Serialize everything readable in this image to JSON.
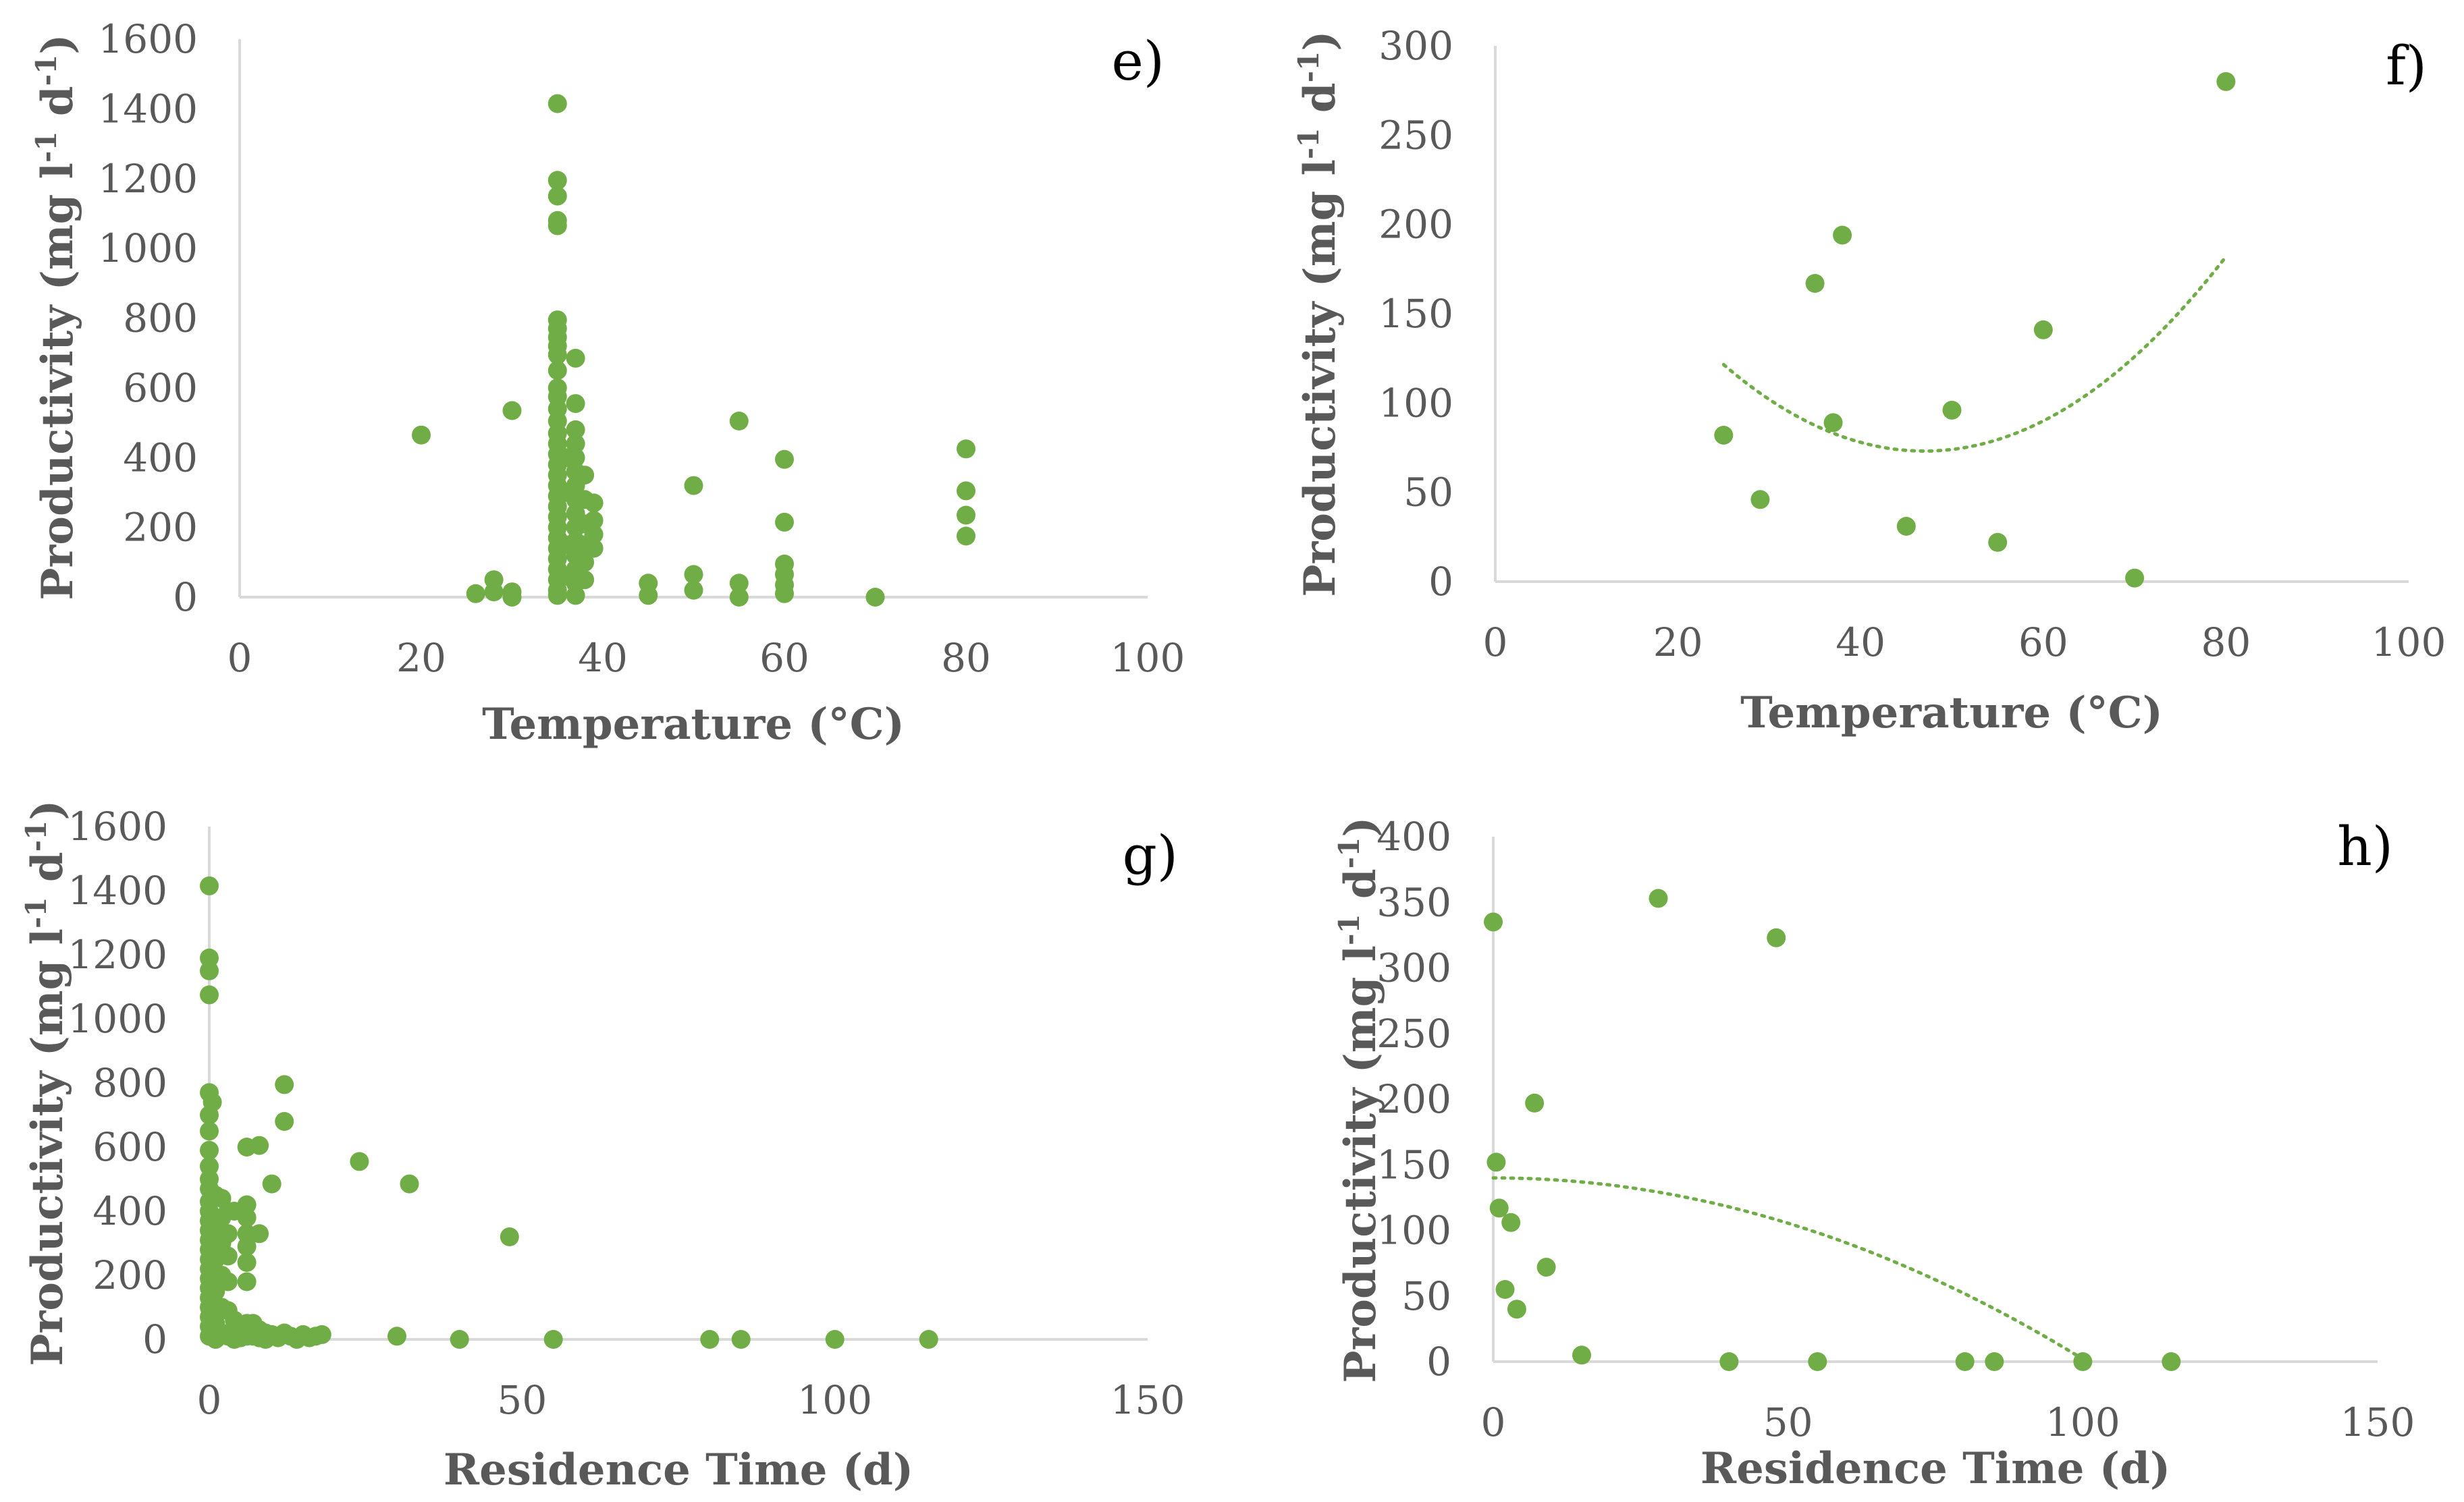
{
  "colors": {
    "marker": "#70AD47",
    "axis": "#D9D9D9",
    "text": "#595959",
    "trend": "#70AD47"
  },
  "chart_data": [
    {
      "id": "e",
      "type": "scatter",
      "panel_label": "e)",
      "xlabel": "Temperature (°C)",
      "ylabel_main": "Productivity (mg l",
      "ylabel_sup1": "-1",
      "ylabel_mid": " d",
      "ylabel_sup2": "-1",
      "ylabel_end": ")",
      "xlim": [
        0,
        100
      ],
      "ylim": [
        0,
        1600
      ],
      "xticks": [
        0,
        20,
        40,
        60,
        80,
        100
      ],
      "yticks": [
        0,
        200,
        400,
        600,
        800,
        1000,
        1200,
        1400,
        1600
      ],
      "points": [
        [
          20,
          465
        ],
        [
          26,
          10
        ],
        [
          28,
          50
        ],
        [
          28,
          15
        ],
        [
          30,
          535
        ],
        [
          30,
          15
        ],
        [
          30,
          0
        ],
        [
          35,
          1415
        ],
        [
          35,
          1195
        ],
        [
          35,
          1150
        ],
        [
          35,
          1080
        ],
        [
          35,
          1065
        ],
        [
          35,
          795
        ],
        [
          35,
          770
        ],
        [
          35,
          745
        ],
        [
          35,
          720
        ],
        [
          35,
          695
        ],
        [
          35,
          650
        ],
        [
          35,
          600
        ],
        [
          35,
          575
        ],
        [
          35,
          540
        ],
        [
          35,
          505
        ],
        [
          35,
          470
        ],
        [
          35,
          440
        ],
        [
          35,
          410
        ],
        [
          35,
          380
        ],
        [
          35,
          350
        ],
        [
          35,
          320
        ],
        [
          35,
          290
        ],
        [
          35,
          260
        ],
        [
          35,
          230
        ],
        [
          35,
          200
        ],
        [
          35,
          170
        ],
        [
          35,
          140
        ],
        [
          35,
          110
        ],
        [
          35,
          80
        ],
        [
          35,
          50
        ],
        [
          35,
          20
        ],
        [
          35,
          5
        ],
        [
          36,
          400
        ],
        [
          36,
          300
        ],
        [
          36,
          150
        ],
        [
          36,
          60
        ],
        [
          37,
          685
        ],
        [
          37,
          555
        ],
        [
          37,
          480
        ],
        [
          37,
          440
        ],
        [
          37,
          400
        ],
        [
          37,
          360
        ],
        [
          37,
          320
        ],
        [
          37,
          280
        ],
        [
          37,
          240
        ],
        [
          37,
          200
        ],
        [
          37,
          160
        ],
        [
          37,
          120
        ],
        [
          37,
          80
        ],
        [
          37,
          40
        ],
        [
          37,
          5
        ],
        [
          38,
          350
        ],
        [
          38,
          280
        ],
        [
          38,
          210
        ],
        [
          38,
          150
        ],
        [
          38,
          100
        ],
        [
          38,
          50
        ],
        [
          39,
          270
        ],
        [
          39,
          220
        ],
        [
          39,
          180
        ],
        [
          39,
          140
        ],
        [
          45,
          40
        ],
        [
          45,
          5
        ],
        [
          50,
          320
        ],
        [
          50,
          65
        ],
        [
          50,
          20
        ],
        [
          55,
          505
        ],
        [
          55,
          40
        ],
        [
          55,
          0
        ],
        [
          60,
          395
        ],
        [
          60,
          215
        ],
        [
          60,
          95
        ],
        [
          60,
          65
        ],
        [
          60,
          35
        ],
        [
          60,
          10
        ],
        [
          70,
          0
        ],
        [
          80,
          425
        ],
        [
          80,
          305
        ],
        [
          80,
          235
        ],
        [
          80,
          175
        ]
      ]
    },
    {
      "id": "f",
      "type": "scatter",
      "panel_label": "f)",
      "xlabel": "Temperature (°C)",
      "ylabel_main": "Productivity (mg l",
      "ylabel_sup1": "-1",
      "ylabel_mid": " d",
      "ylabel_sup2": "-1",
      "ylabel_end": ")",
      "xlim": [
        0,
        100
      ],
      "ylim": [
        0,
        300
      ],
      "xticks": [
        0,
        20,
        40,
        60,
        80,
        100
      ],
      "yticks": [
        0,
        50,
        100,
        150,
        200,
        250,
        300
      ],
      "points": [
        [
          25,
          82
        ],
        [
          29,
          46
        ],
        [
          35,
          167
        ],
        [
          37,
          89
        ],
        [
          38,
          194
        ],
        [
          45,
          31
        ],
        [
          50,
          96
        ],
        [
          55,
          22
        ],
        [
          60,
          141
        ],
        [
          70,
          2
        ],
        [
          80,
          280
        ]
      ],
      "trendline": {
        "kind": "polynomial-2",
        "x_range": [
          25,
          80
        ],
        "coef": [
          0.1,
          -9.4,
          294
        ]
      }
    },
    {
      "id": "g",
      "type": "scatter",
      "panel_label": "g)",
      "xlabel": "Residence Time (d)",
      "ylabel_main": "Productivity (mg l",
      "ylabel_sup1": "-1",
      "ylabel_mid": " d",
      "ylabel_sup2": "-1",
      "ylabel_end": ")",
      "xlim": [
        0,
        150
      ],
      "ylim": [
        0,
        1600
      ],
      "xticks": [
        0,
        50,
        100,
        150
      ],
      "yticks": [
        0,
        200,
        400,
        600,
        800,
        1000,
        1200,
        1400,
        1600
      ],
      "points": [
        [
          0,
          1415
        ],
        [
          0,
          1190
        ],
        [
          0,
          1150
        ],
        [
          0,
          1075
        ],
        [
          0,
          770
        ],
        [
          0.5,
          740
        ],
        [
          0,
          700
        ],
        [
          0,
          650
        ],
        [
          0,
          590
        ],
        [
          0,
          540
        ],
        [
          0,
          500
        ],
        [
          0,
          470
        ],
        [
          0,
          430
        ],
        [
          0,
          400
        ],
        [
          0,
          370
        ],
        [
          0,
          340
        ],
        [
          0,
          310
        ],
        [
          0,
          280
        ],
        [
          0,
          250
        ],
        [
          0,
          220
        ],
        [
          0,
          190
        ],
        [
          0,
          160
        ],
        [
          0,
          130
        ],
        [
          0,
          100
        ],
        [
          0,
          70
        ],
        [
          0,
          40
        ],
        [
          0,
          10
        ],
        [
          1,
          450
        ],
        [
          1,
          350
        ],
        [
          1,
          250
        ],
        [
          1,
          150
        ],
        [
          1,
          50
        ],
        [
          1,
          0
        ],
        [
          2,
          440
        ],
        [
          2,
          380
        ],
        [
          2,
          300
        ],
        [
          2,
          200
        ],
        [
          2,
          100
        ],
        [
          2,
          20
        ],
        [
          3,
          400
        ],
        [
          3,
          330
        ],
        [
          3,
          260
        ],
        [
          3,
          180
        ],
        [
          3,
          90
        ],
        [
          3,
          10
        ],
        [
          4,
          400
        ],
        [
          4,
          60
        ],
        [
          4,
          0
        ],
        [
          5,
          30
        ],
        [
          5,
          5
        ],
        [
          6,
          600
        ],
        [
          6,
          420
        ],
        [
          6,
          380
        ],
        [
          6,
          330
        ],
        [
          6,
          290
        ],
        [
          6,
          240
        ],
        [
          6,
          180
        ],
        [
          6,
          50
        ],
        [
          6,
          10
        ],
        [
          7,
          50
        ],
        [
          7,
          10
        ],
        [
          8,
          605
        ],
        [
          8,
          330
        ],
        [
          8,
          30
        ],
        [
          8,
          5
        ],
        [
          9,
          20
        ],
        [
          9,
          0
        ],
        [
          10,
          485
        ],
        [
          10,
          15
        ],
        [
          11,
          5
        ],
        [
          12,
          795
        ],
        [
          12,
          680
        ],
        [
          12,
          20
        ],
        [
          13,
          10
        ],
        [
          14,
          0
        ],
        [
          15,
          15
        ],
        [
          16,
          5
        ],
        [
          17,
          10
        ],
        [
          18,
          15
        ],
        [
          24,
          555
        ],
        [
          30,
          10
        ],
        [
          32,
          485
        ],
        [
          40,
          0
        ],
        [
          48,
          320
        ],
        [
          55,
          0
        ],
        [
          80,
          0
        ],
        [
          85,
          0
        ],
        [
          100,
          0
        ],
        [
          115,
          0
        ]
      ]
    },
    {
      "id": "h",
      "type": "scatter",
      "panel_label": "h)",
      "xlabel": "Residence Time (d)",
      "ylabel_main": "Productivity (mg l",
      "ylabel_sup1": "-1",
      "ylabel_mid": " d",
      "ylabel_sup2": "-1",
      "ylabel_end": ")",
      "xlim": [
        0,
        150
      ],
      "ylim": [
        0,
        400
      ],
      "xticks": [
        0,
        50,
        100,
        150
      ],
      "yticks": [
        0,
        50,
        100,
        150,
        200,
        250,
        300,
        350,
        400
      ],
      "points": [
        [
          0,
          335
        ],
        [
          0.5,
          152
        ],
        [
          1,
          117
        ],
        [
          3,
          106
        ],
        [
          2,
          55
        ],
        [
          4,
          40
        ],
        [
          7,
          197
        ],
        [
          9,
          72
        ],
        [
          15,
          5
        ],
        [
          28,
          353
        ],
        [
          40,
          0
        ],
        [
          48,
          323
        ],
        [
          55,
          0
        ],
        [
          80,
          0
        ],
        [
          85,
          0
        ],
        [
          100,
          0
        ],
        [
          115,
          0
        ]
      ],
      "trendline": {
        "kind": "polynomial-2",
        "x_range": [
          0,
          100
        ],
        "coef": [
          -0.0138,
          0.0,
          140
        ]
      }
    }
  ]
}
